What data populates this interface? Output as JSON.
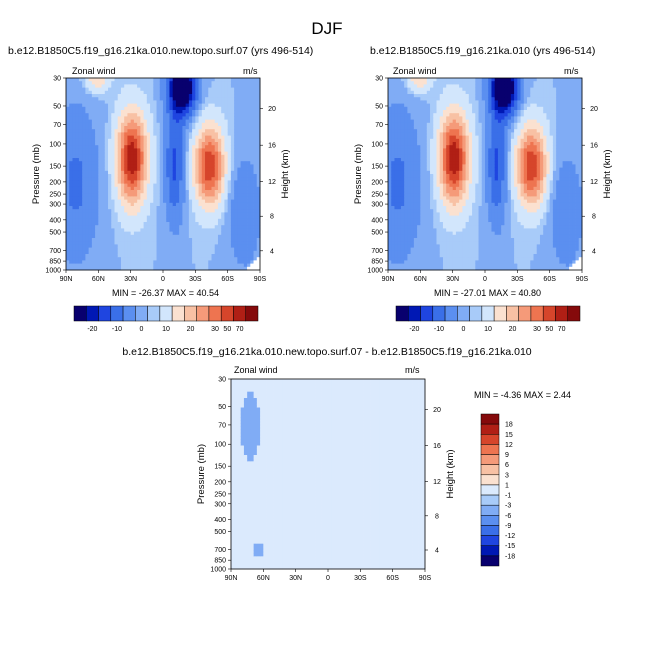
{
  "figure": {
    "title": "DJF"
  },
  "chart_data": [
    {
      "type": "heatmap",
      "title": "b.e12.B1850C5.f19_g16.21ka.010.new.topo.surf.07 (yrs 496-514)",
      "variable": "Zonal wind",
      "units": "m/s",
      "ylabel": "Pressure (mb)",
      "y2label": "Height (km)",
      "x_ticks": [
        "90N",
        "60N",
        "30N",
        "0",
        "30S",
        "60S",
        "90S"
      ],
      "y_ticks": [
        "30",
        "50",
        "70",
        "100",
        "150",
        "200",
        "250",
        "300",
        "400",
        "500",
        "700",
        "850",
        "1000"
      ],
      "y2_ticks": [
        "4",
        "8",
        "12",
        "16",
        "20"
      ],
      "stats": "MIN = -26.37   MAX = 40.54",
      "min": -26.37,
      "max": 40.54,
      "colorbar_labels": [
        "-20",
        "-10",
        "0",
        "10",
        "20",
        "30",
        "50",
        "70"
      ]
    },
    {
      "type": "heatmap",
      "title": "b.e12.B1850C5.f19_g16.21ka.010 (yrs 496-514)",
      "variable": "Zonal wind",
      "units": "m/s",
      "ylabel": "Pressure (mb)",
      "y2label": "Height (km)",
      "x_ticks": [
        "90N",
        "60N",
        "30N",
        "0",
        "30S",
        "60S",
        "90S"
      ],
      "y_ticks": [
        "30",
        "50",
        "70",
        "100",
        "150",
        "200",
        "250",
        "300",
        "400",
        "500",
        "700",
        "850",
        "1000"
      ],
      "y2_ticks": [
        "4",
        "8",
        "12",
        "16",
        "20"
      ],
      "stats": "MIN = -27.01   MAX = 40.80",
      "min": -27.01,
      "max": 40.8,
      "colorbar_labels": [
        "-20",
        "-10",
        "0",
        "10",
        "20",
        "30",
        "50",
        "70"
      ]
    },
    {
      "type": "heatmap",
      "title": "b.e12.B1850C5.f19_g16.21ka.010.new.topo.surf.07 - b.e12.B1850C5.f19_g16.21ka.010",
      "variable": "Zonal wind",
      "units": "m/s",
      "ylabel": "Pressure (mb)",
      "y2label": "Height (km)",
      "x_ticks": [
        "90N",
        "60N",
        "30N",
        "0",
        "30S",
        "60S",
        "90S"
      ],
      "y_ticks": [
        "30",
        "50",
        "70",
        "100",
        "150",
        "200",
        "250",
        "300",
        "400",
        "500",
        "700",
        "850",
        "1000"
      ],
      "y2_ticks": [
        "4",
        "8",
        "12",
        "16",
        "20"
      ],
      "stats": "MIN = -4.36   MAX =  2.44",
      "min": -4.36,
      "max": 2.44,
      "colorbar_labels": [
        "18",
        "15",
        "12",
        "9",
        "6",
        "3",
        "1",
        "-1",
        "-3",
        "-6",
        "-9",
        "-12",
        "-15",
        "-18"
      ]
    }
  ],
  "colors": {
    "seq_cbar": [
      "#08006e",
      "#0018b4",
      "#1f45e0",
      "#3a6fe8",
      "#5b8ff0",
      "#80acf5",
      "#a8cbf9",
      "#d2e6fc",
      "#fbe1d0",
      "#f8c1a4",
      "#f59a79",
      "#ee7450",
      "#d6452b",
      "#b01f15",
      "#850a0b"
    ],
    "diff_cbar": [
      "#850a0b",
      "#b01f15",
      "#d6452b",
      "#ee7450",
      "#f59a79",
      "#f8c1a4",
      "#fbe1d0",
      "#dbeafd",
      "#a8cbf9",
      "#80acf5",
      "#5b8ff0",
      "#3a6fe8",
      "#1f45e0",
      "#0018b4",
      "#08006e"
    ]
  }
}
